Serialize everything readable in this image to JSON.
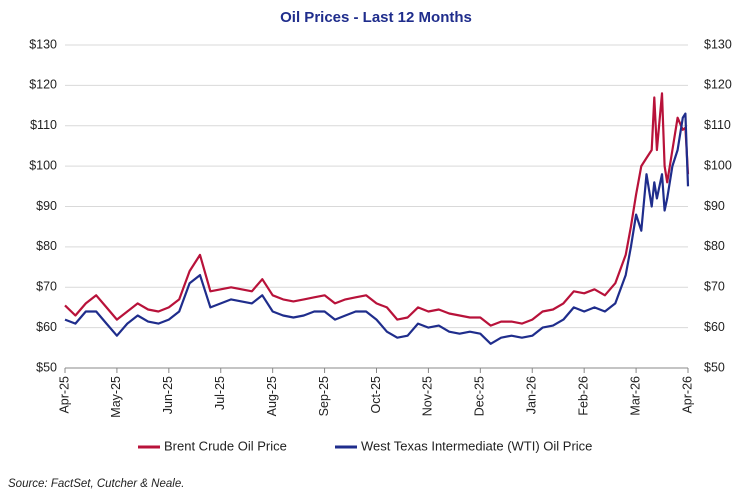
{
  "chart_data": {
    "type": "line",
    "title": "Oil Prices - Last 12 Months",
    "source": "Source: FactSet, Cutcher & Neale.",
    "x": [
      0,
      0.2,
      0.4,
      0.6,
      0.8,
      1.0,
      1.2,
      1.4,
      1.6,
      1.8,
      2.0,
      2.2,
      2.4,
      2.6,
      2.8,
      3.0,
      3.2,
      3.4,
      3.6,
      3.8,
      4.0,
      4.2,
      4.4,
      4.6,
      4.8,
      5.0,
      5.2,
      5.4,
      5.6,
      5.8,
      6.0,
      6.2,
      6.4,
      6.6,
      6.8,
      7.0,
      7.2,
      7.4,
      7.6,
      7.8,
      8.0,
      8.2,
      8.4,
      8.6,
      8.8,
      9.0,
      9.2,
      9.4,
      9.6,
      9.8,
      10.0,
      10.2,
      10.4,
      10.6,
      10.8,
      10.9,
      11.0,
      11.1,
      11.2,
      11.3,
      11.35,
      11.4,
      11.5,
      11.55,
      11.6,
      11.7,
      11.8,
      11.9,
      11.95,
      12.0
    ],
    "series": [
      {
        "name": "Brent Crude Oil Price",
        "color": "#b8123a",
        "values": [
          65.5,
          63,
          66,
          68,
          65,
          62,
          64,
          66,
          64.5,
          64,
          65,
          67,
          74,
          78,
          69,
          69.5,
          70,
          69.5,
          69,
          72,
          68,
          67,
          66.5,
          67,
          67.5,
          68,
          66,
          67,
          67.5,
          68,
          66,
          65,
          62,
          62.5,
          65,
          64,
          64.5,
          63.5,
          63,
          62.5,
          62.5,
          60.5,
          61.5,
          61.5,
          61,
          62,
          64,
          64.5,
          66,
          69,
          68.5,
          69.5,
          68,
          71,
          78,
          85,
          93,
          100,
          102,
          104,
          117,
          104,
          118,
          100,
          96,
          104,
          112,
          109,
          109.5,
          98
        ]
      },
      {
        "name": "West Texas Intermediate (WTI) Oil Price",
        "color": "#1f2d8c",
        "values": [
          62,
          61,
          64,
          64,
          61,
          58,
          61,
          63,
          61.5,
          61,
          62,
          64,
          71,
          73,
          65,
          66,
          67,
          66.5,
          66,
          68,
          64,
          63,
          62.5,
          63,
          64,
          64,
          62,
          63,
          64,
          64,
          62,
          59,
          57.5,
          58,
          61,
          60,
          60.5,
          59,
          58.5,
          59,
          58.5,
          56,
          57.5,
          58,
          57.5,
          58,
          60,
          60.5,
          62,
          65,
          64,
          65,
          64,
          66,
          73,
          80,
          88,
          84,
          98,
          90,
          96,
          92,
          98,
          89,
          92,
          100,
          104,
          112,
          113,
          95
        ]
      }
    ],
    "xlim": [
      0,
      12
    ],
    "xticks": [
      {
        "value": 0,
        "label": "Apr-25"
      },
      {
        "value": 1,
        "label": "May-25"
      },
      {
        "value": 2,
        "label": "Jun-25"
      },
      {
        "value": 3,
        "label": "Jul-25"
      },
      {
        "value": 4,
        "label": "Aug-25"
      },
      {
        "value": 5,
        "label": "Sep-25"
      },
      {
        "value": 6,
        "label": "Oct-25"
      },
      {
        "value": 7,
        "label": "Nov-25"
      },
      {
        "value": 8,
        "label": "Dec-25"
      },
      {
        "value": 9,
        "label": "Jan-26"
      },
      {
        "value": 10,
        "label": "Feb-26"
      },
      {
        "value": 11,
        "label": "Mar-26"
      },
      {
        "value": 12,
        "label": "Apr-26"
      }
    ],
    "ylim": [
      50,
      130
    ],
    "yticks": [
      {
        "value": 50,
        "label": "$50"
      },
      {
        "value": 60,
        "label": "$60"
      },
      {
        "value": 70,
        "label": "$70"
      },
      {
        "value": 80,
        "label": "$80"
      },
      {
        "value": 90,
        "label": "$90"
      },
      {
        "value": 100,
        "label": "$100"
      },
      {
        "value": 110,
        "label": "$110"
      },
      {
        "value": 120,
        "label": "$120"
      },
      {
        "value": 130,
        "label": "$130"
      }
    ],
    "y2lim": [
      50,
      130
    ],
    "y2ticks": [
      {
        "value": 50,
        "label": "$50"
      },
      {
        "value": 60,
        "label": "$60"
      },
      {
        "value": 70,
        "label": "$70"
      },
      {
        "value": 80,
        "label": "$80"
      },
      {
        "value": 90,
        "label": "$90"
      },
      {
        "value": 100,
        "label": "$100"
      },
      {
        "value": 110,
        "label": "$110"
      },
      {
        "value": 120,
        "label": "$120"
      },
      {
        "value": 130,
        "label": "$130"
      }
    ],
    "grid": true
  }
}
